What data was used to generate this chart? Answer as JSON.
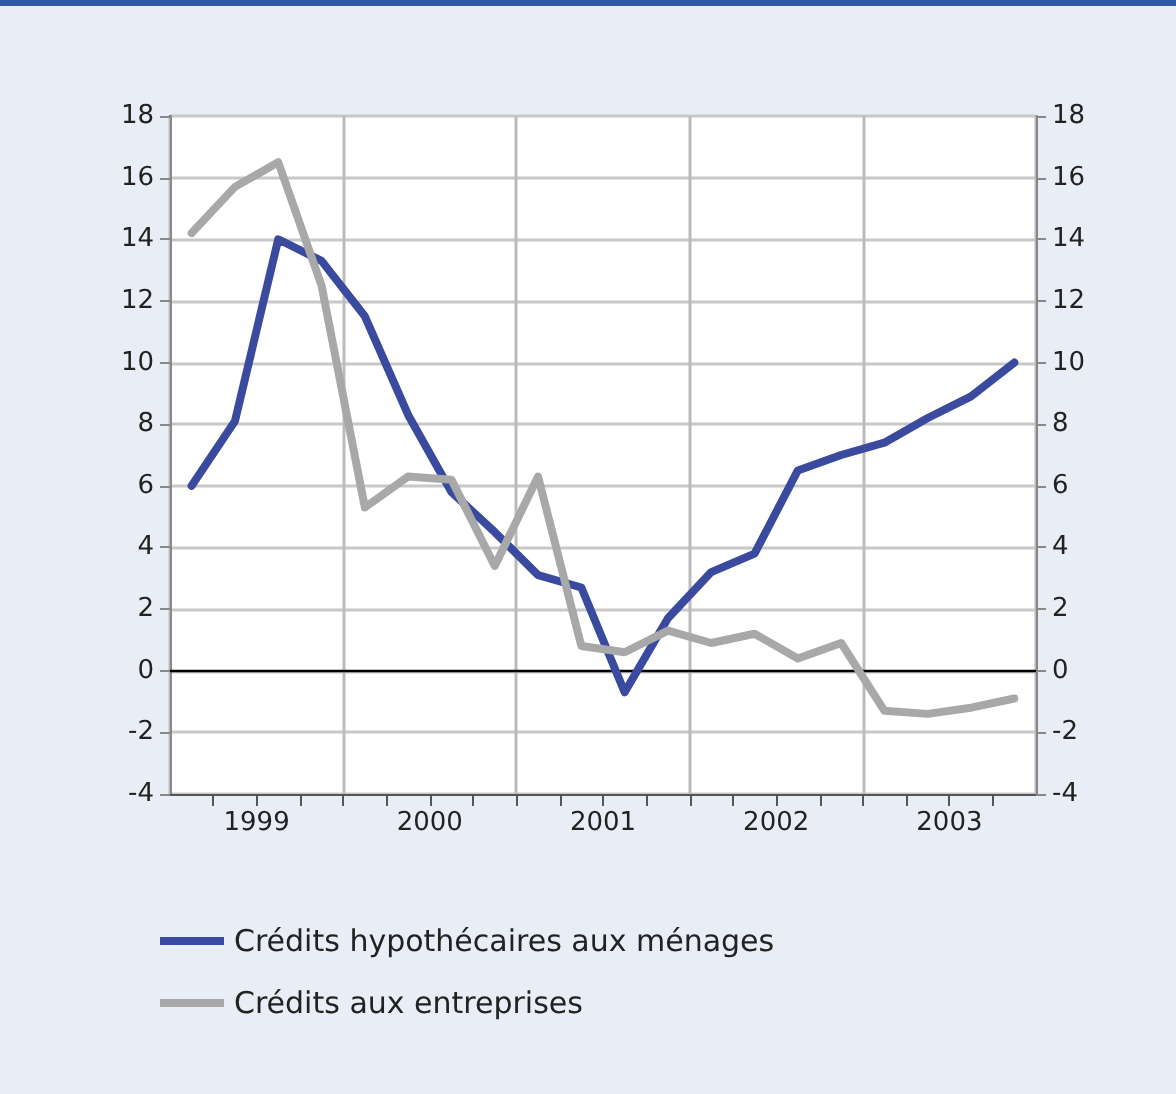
{
  "chart_data": {
    "type": "line",
    "x": [
      1998.625,
      1998.875,
      1999.125,
      1999.375,
      1999.625,
      1999.875,
      2000.125,
      2000.375,
      2000.625,
      2000.875,
      2001.125,
      2001.375,
      2001.625,
      2001.875,
      2002.125,
      2002.375,
      2002.625,
      2002.875,
      2003.125,
      2003.375
    ],
    "series": [
      {
        "name": "Crédits hypothécaires aux ménages",
        "color": "#3a4a9e",
        "values": [
          6.0,
          8.1,
          14.0,
          13.3,
          11.5,
          8.3,
          5.8,
          4.5,
          3.1,
          2.7,
          -0.7,
          1.7,
          3.2,
          3.8,
          6.5,
          7.0,
          7.4,
          8.2,
          8.9,
          10.0
        ]
      },
      {
        "name": "Crédits aux entreprises",
        "color": "#a8a8a8",
        "values": [
          14.2,
          15.7,
          16.5,
          12.5,
          5.3,
          6.3,
          6.2,
          3.4,
          6.3,
          0.8,
          0.6,
          1.3,
          0.9,
          1.2,
          0.4,
          0.9,
          -1.3,
          -1.4,
          -1.2,
          -0.9
        ]
      }
    ],
    "xlim": [
      1998.5,
      2003.5
    ],
    "xticks": [
      {
        "value": 1998.75,
        "label": null
      },
      1999,
      {
        "value": 1999.25,
        "label": null
      },
      {
        "value": 1999.5,
        "label": null
      },
      {
        "value": 1999.75,
        "label": null
      },
      2000,
      {
        "value": 2000.25,
        "label": null
      },
      {
        "value": 2000.5,
        "label": null
      },
      {
        "value": 2000.75,
        "label": null
      },
      2001,
      {
        "value": 2001.25,
        "label": null
      },
      {
        "value": 2001.5,
        "label": null
      },
      {
        "value": 2001.75,
        "label": null
      },
      2002,
      {
        "value": 2002.25,
        "label": null
      },
      {
        "value": 2002.5,
        "label": null
      },
      {
        "value": 2002.75,
        "label": null
      },
      2003,
      {
        "value": 2003.25,
        "label": null
      }
    ],
    "ylim": [
      -4,
      18
    ],
    "yticks": [
      -4,
      -2,
      0,
      2,
      4,
      6,
      8,
      10,
      12,
      14,
      16,
      18
    ],
    "y2lim": [
      -4,
      18
    ],
    "y2ticks": [
      -4,
      -2,
      0,
      2,
      4,
      6,
      8,
      10,
      12,
      14,
      16,
      18
    ],
    "ref_lines": [
      {
        "axis": "y",
        "value": 0,
        "color": "#000000"
      }
    ],
    "grid": true,
    "legend": "bottom",
    "marker": "none",
    "line_style": "solid"
  }
}
